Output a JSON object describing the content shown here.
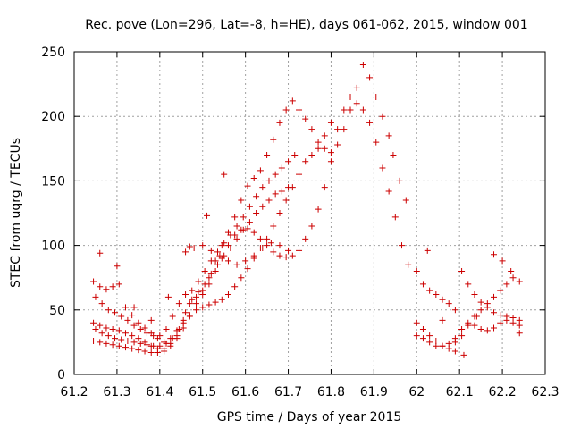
{
  "chart_data": {
    "type": "scatter",
    "title": "Rec. pove (Lon=296, Lat=-8, h=HE), days 061-062, 2015, window 001",
    "xlabel": "GPS time / Days of year 2015",
    "ylabel": "STEC from uqrg / TECUs",
    "xlim": [
      61.2,
      62.3
    ],
    "ylim": [
      0,
      250
    ],
    "xticks": [
      "61.2",
      "61.3",
      "61.4",
      "61.5",
      "61.6",
      "61.7",
      "61.8",
      "61.9",
      "62",
      "62.1",
      "62.2",
      "62.3"
    ],
    "yticks": [
      "0",
      "50",
      "100",
      "150",
      "200",
      "250"
    ],
    "grid": true,
    "marker": "+",
    "color": "#cc0000",
    "series": [
      {
        "x": [
          61.245,
          61.26,
          61.275,
          61.29,
          61.305,
          61.32,
          61.335,
          61.35,
          61.365,
          61.38,
          61.395,
          61.41,
          61.425,
          61.44,
          61.455,
          61.47,
          61.485,
          61.5,
          61.515,
          61.53,
          61.545,
          61.56,
          61.575,
          61.59,
          61.605,
          61.62,
          61.635,
          61.65,
          61.665,
          61.68,
          61.695,
          61.71,
          61.725,
          61.74,
          61.755,
          61.77,
          61.785,
          61.8,
          61.815,
          61.83,
          61.845,
          61.86,
          61.875,
          61.89,
          61.905,
          61.92,
          61.935,
          61.95,
          61.965,
          61.98
        ],
        "y": [
          72,
          68,
          66,
          68,
          70,
          52,
          46,
          40,
          36,
          32,
          28,
          25,
          28,
          34,
          40,
          46,
          55,
          62,
          70,
          80,
          90,
          100,
          108,
          112,
          113,
          110,
          105,
          100,
          95,
          92,
          91,
          92,
          96,
          105,
          115,
          128,
          145,
          165,
          190,
          205,
          215,
          210,
          205,
          195,
          180,
          160,
          142,
          122,
          100,
          85
        ]
      },
      {
        "x": [
          61.245,
          61.26,
          61.275,
          61.29,
          61.305,
          61.32,
          61.335,
          61.35,
          61.365,
          61.38,
          61.395,
          61.41,
          61.425,
          61.44,
          61.455,
          61.47,
          61.485,
          61.5,
          61.515,
          61.53,
          61.545,
          61.56,
          61.575,
          61.59,
          61.605,
          61.62,
          61.635,
          61.65,
          61.665,
          61.68,
          61.695,
          61.71,
          61.725,
          61.74,
          61.755,
          61.77,
          61.785,
          61.8,
          61.815,
          61.83,
          61.845,
          61.86,
          61.875,
          61.89,
          61.905,
          61.92,
          61.935,
          61.945,
          61.96,
          61.975
        ],
        "y": [
          40,
          38,
          36,
          35,
          34,
          32,
          30,
          28,
          25,
          22,
          20,
          20,
          24,
          30,
          42,
          55,
          60,
          65,
          75,
          88,
          100,
          110,
          122,
          135,
          146,
          152,
          158,
          170,
          182,
          195,
          205,
          212,
          205,
          198,
          190,
          180,
          175,
          172,
          178,
          190,
          205,
          222,
          240,
          230,
          215,
          200,
          185,
          170,
          150,
          135
        ]
      },
      {
        "x": [
          61.245,
          61.26,
          61.275,
          61.29,
          61.305,
          61.32,
          61.335,
          61.35,
          61.365,
          61.38,
          61.395,
          61.41,
          61.425,
          61.44,
          61.455,
          61.47,
          61.485,
          61.5,
          61.515,
          61.53,
          61.545,
          61.56,
          61.575,
          61.59,
          61.605,
          61.62,
          61.635,
          61.65,
          61.665,
          61.68,
          61.695,
          61.71,
          61.725,
          61.74,
          61.755,
          61.77,
          61.785,
          61.8
        ],
        "y": [
          26,
          25,
          24,
          23,
          22,
          21,
          20,
          19,
          18,
          17,
          17,
          18,
          22,
          28,
          36,
          45,
          50,
          52,
          54,
          56,
          58,
          62,
          68,
          75,
          82,
          90,
          98,
          105,
          115,
          125,
          135,
          145,
          155,
          165,
          170,
          175,
          185,
          195
        ]
      },
      {
        "x": [
          61.25,
          61.265,
          61.28,
          61.295,
          61.31,
          61.325,
          61.34,
          61.355,
          61.37,
          61.385,
          61.4,
          61.415,
          61.43,
          61.445,
          61.46,
          61.475,
          61.49,
          61.505,
          61.52,
          61.535,
          61.55,
          61.565,
          61.58,
          61.595,
          61.61,
          61.625,
          61.64,
          61.655,
          61.67,
          61.685,
          61.7,
          61.715
        ],
        "y": [
          60,
          55,
          50,
          48,
          45,
          42,
          38,
          35,
          32,
          30,
          30,
          35,
          45,
          55,
          62,
          65,
          72,
          80,
          88,
          95,
          102,
          108,
          115,
          122,
          130,
          138,
          145,
          150,
          155,
          160,
          165,
          170
        ]
      },
      {
        "x": [
          61.25,
          61.265,
          61.28,
          61.295,
          61.31,
          61.325,
          61.34,
          61.355,
          61.37,
          61.385,
          61.4,
          61.415,
          61.43,
          61.445,
          61.46,
          61.475,
          61.49,
          61.505,
          61.52,
          61.535,
          61.55,
          61.565,
          61.58,
          61.595,
          61.61,
          61.625,
          61.64,
          61.655,
          61.67,
          61.685,
          61.7
        ],
        "y": [
          35,
          32,
          30,
          28,
          27,
          26,
          25,
          24,
          23,
          22,
          22,
          24,
          28,
          35,
          48,
          58,
          64,
          70,
          78,
          85,
          92,
          98,
          105,
          112,
          118,
          125,
          130,
          135,
          140,
          142,
          145
        ]
      },
      {
        "x": [
          61.46,
          61.48,
          61.5,
          61.52,
          61.54,
          61.56,
          61.58,
          61.6,
          61.62,
          61.64,
          61.66,
          61.68,
          61.7
        ],
        "y": [
          95,
          98,
          100,
          96,
          92,
          88,
          85,
          88,
          92,
          98,
          102,
          100,
          96
        ]
      },
      {
        "x": [
          61.26,
          61.3,
          61.34,
          61.38,
          61.42,
          61.47,
          61.51,
          61.55
        ],
        "y": [
          94,
          84,
          52,
          42,
          60,
          99,
          123,
          155
        ]
      },
      {
        "x": [
          62.0,
          62.015,
          62.03,
          62.045,
          62.06,
          62.075,
          62.09,
          62.105,
          62.12,
          62.135,
          62.15,
          62.165,
          62.18,
          62.195,
          62.21,
          62.225,
          62.24
        ],
        "y": [
          80,
          70,
          65,
          62,
          58,
          55,
          50,
          80,
          70,
          62,
          56,
          52,
          48,
          46,
          45,
          44,
          42
        ]
      },
      {
        "x": [
          62.0,
          62.015,
          62.03,
          62.045,
          62.06,
          62.075,
          62.09,
          62.105,
          62.12,
          62.135,
          62.15,
          62.165,
          62.18,
          62.195,
          62.21,
          62.225,
          62.24
        ],
        "y": [
          40,
          35,
          30,
          26,
          22,
          20,
          18,
          30,
          38,
          45,
          50,
          55,
          60,
          65,
          70,
          75,
          72
        ]
      },
      {
        "x": [
          62.0,
          62.015,
          62.03,
          62.045,
          62.06,
          62.075,
          62.09,
          62.105,
          62.12,
          62.135,
          62.15,
          62.165,
          62.18,
          62.195,
          62.21,
          62.225,
          62.24
        ],
        "y": [
          30,
          28,
          25,
          22,
          22,
          24,
          28,
          35,
          40,
          38,
          35,
          34,
          36,
          40,
          42,
          40,
          38
        ]
      },
      {
        "x": [
          62.025,
          62.06,
          62.09,
          62.11,
          62.14,
          62.18,
          62.2,
          62.22,
          62.24
        ],
        "y": [
          96,
          42,
          25,
          15,
          45,
          93,
          88,
          80,
          32
        ]
      }
    ]
  }
}
